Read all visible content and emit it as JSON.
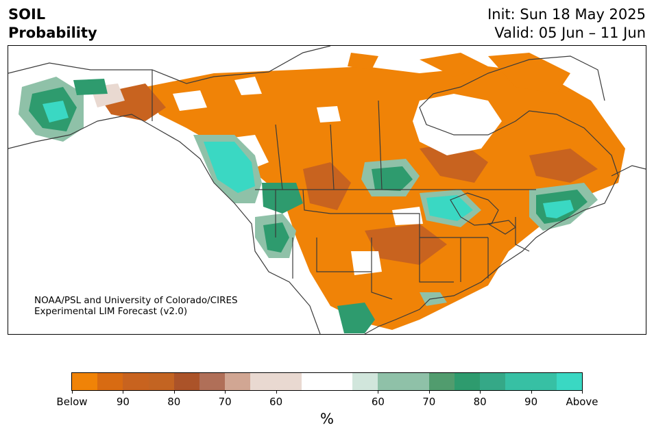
{
  "title": {
    "left_line1": "SOIL",
    "left_line2": "Probability",
    "right_line1": "Init: Sun 18 May 2025",
    "right_line2": "Valid: 05 Jun – 11 Jun"
  },
  "map": {
    "credit_line1": "NOAA/PSL and University of Colorado/CIRES",
    "credit_line2": "Experimental LIM Forecast (v2.0)",
    "colors": {
      "below_strong": "#f08307",
      "below_mid": "#c8631f",
      "below_weak": "#e9d9d1",
      "above_weak": "#8fc1a8",
      "above_mid": "#2e9b6e",
      "above_strong": "#3ad8c3",
      "borders": "#3a3a3a"
    }
  },
  "colorbar": {
    "colors": [
      "#f08307",
      "#d86b12",
      "#c8631f",
      "#c36422",
      "#ab5329",
      "#b06f58",
      "#d1a693",
      "#e9d9d1",
      "#e9d9d1",
      "#ffffff",
      "#ffffff",
      "#d1e6dc",
      "#8fc1a8",
      "#8fc1a8",
      "#519c6e",
      "#2e9b6e",
      "#35a887",
      "#37c0a4",
      "#37c0a4",
      "#3ad8c3"
    ],
    "labels": [
      "Below",
      "90",
      "80",
      "70",
      "60",
      "60",
      "70",
      "80",
      "90",
      "Above"
    ],
    "unit": "%"
  }
}
